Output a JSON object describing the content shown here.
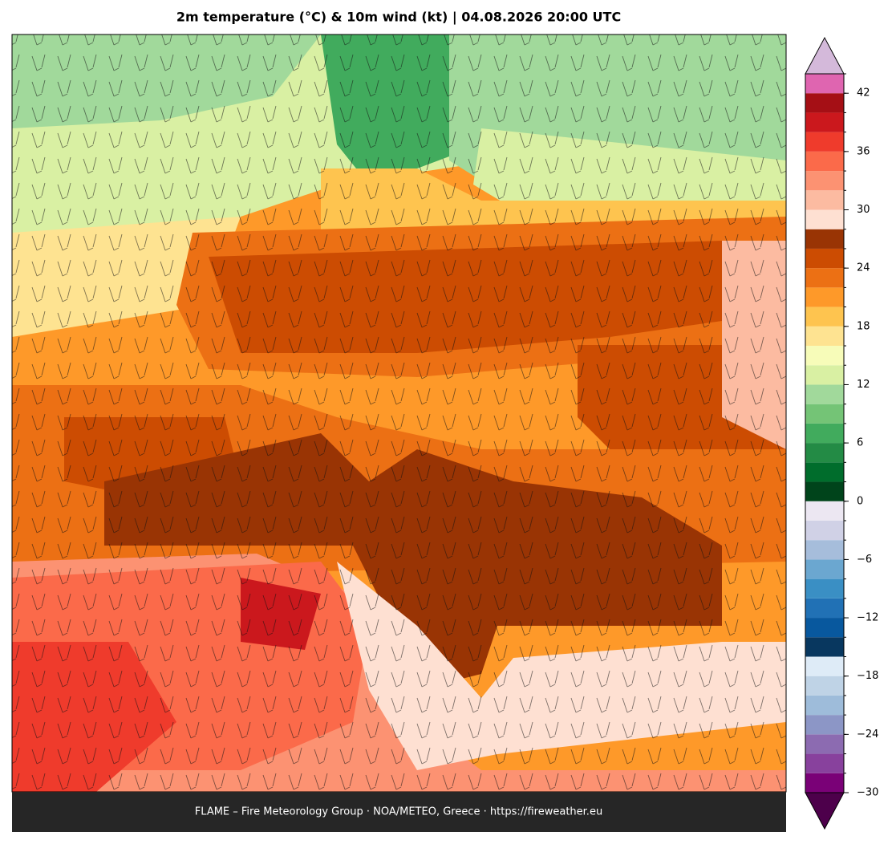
{
  "title": "2m temperature (°C) & 10m wind (kt)  |  04.08.2026 20:00 UTC",
  "footer": "FLAME – Fire Meteorology Group · NOA/METEO, Greece · https://fireweather.eu",
  "colorbar": {
    "levels": [
      -30,
      -28,
      -26,
      -24,
      -22,
      -20,
      -18,
      -16,
      -14,
      -12,
      -10,
      -8,
      -6,
      -4,
      -2,
      0,
      2,
      4,
      6,
      8,
      10,
      12,
      14,
      16,
      18,
      20,
      22,
      24,
      26,
      28,
      30,
      32,
      34,
      36,
      38,
      40,
      42,
      44
    ],
    "colors": [
      "#7a0177",
      "#88419d",
      "#8c6bb1",
      "#8c96c6",
      "#9ebcda",
      "#bfd3e6",
      "#deebf7",
      "#08375f",
      "#08589e",
      "#2171b5",
      "#3a8fc4",
      "#6ba7d0",
      "#a6bddb",
      "#d0d1e6",
      "#ece7f2",
      "#00441b",
      "#006d2c",
      "#238b45",
      "#41ab5d",
      "#74c476",
      "#a1d99b",
      "#d9f0a3",
      "#f7fcb9",
      "#fee391",
      "#fec44f",
      "#fe9929",
      "#ec7014",
      "#cc4c02",
      "#993404",
      "#fee0d2",
      "#fcbba1",
      "#fc9272",
      "#fb6a4a",
      "#ef3b2c",
      "#cb181d",
      "#a50f15",
      "#df65b0"
    ],
    "extend_low_color": "#4d004b",
    "extend_high_color": "#d4b9da",
    "ticks": [
      {
        "value": -30,
        "label": "−30"
      },
      {
        "value": -24,
        "label": "−24"
      },
      {
        "value": -18,
        "label": "−18"
      },
      {
        "value": -12,
        "label": "−12"
      },
      {
        "value": -6,
        "label": "−6"
      },
      0,
      6,
      12,
      18,
      24,
      30,
      36,
      42
    ]
  }
}
